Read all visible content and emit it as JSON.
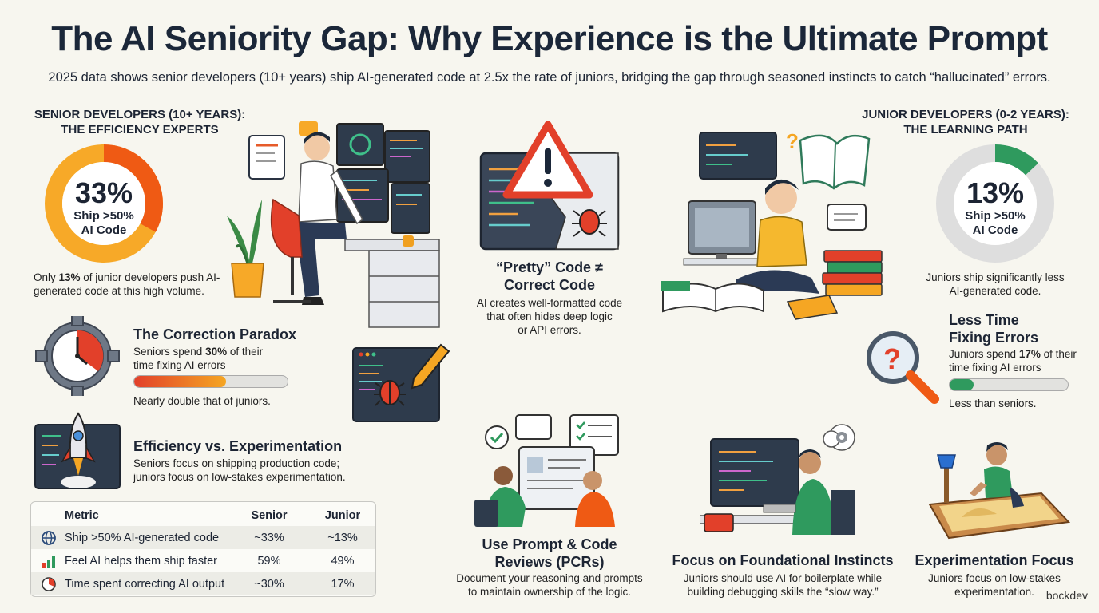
{
  "title": "The AI Seniority Gap: Why Experience is the Ultimate Prompt",
  "subtitle": "2025 data shows senior developers (10+ years) ship AI-generated code at 2.5x the rate of juniors, bridging the gap through seasoned instincts to catch “hallucinated” errors.",
  "colors": {
    "accent_orange": "#f07a1a",
    "accent_red": "#e2402a",
    "accent_green": "#2f9a5e",
    "dark_navy": "#1b2739"
  },
  "senior": {
    "heading_line1": "SENIOR DEVELOPERS (10+ YEARS):",
    "heading_line2": "THE EFFICIENCY EXPERTS",
    "donut_value": "33%",
    "donut_fraction": 0.33,
    "donut_line1": "Ship >50%",
    "donut_line2": "AI Code",
    "note_pre": "Only ",
    "note_bold": "13%",
    "note_post": " of junior developers push AI-generated code at this high volume.",
    "correction_title": "The Correction Paradox",
    "correction_pre": "Seniors spend ",
    "correction_bold": "30%",
    "correction_post": " of their time fixing AI errors",
    "correction_bar_fraction": 0.6,
    "correction_note": "Nearly double that of juniors.",
    "efficiency_title": "Efficiency vs. Experimentation",
    "efficiency_line1": "Seniors focus on shipping production code;",
    "efficiency_line2": "juniors focus on low-stakes experimentation."
  },
  "table": {
    "headers": [
      "Metric",
      "Senior",
      "Junior"
    ],
    "rows": [
      {
        "icon": "globe-icon",
        "metric": "Ship >50% AI-generated code",
        "senior": "~33%",
        "junior": "~13%"
      },
      {
        "icon": "bar-chart-icon",
        "metric": "Feel AI helps them ship faster",
        "senior": "59%",
        "junior": "49%"
      },
      {
        "icon": "pie-clock-icon",
        "metric": "Time spent correcting AI output",
        "senior": "~30%",
        "junior": "17%"
      }
    ]
  },
  "middle": {
    "pretty_title_line1": "“Pretty” Code ≠",
    "pretty_title_line2": "Correct Code",
    "pretty_line1": "AI creates well-formatted code",
    "pretty_line2": "that often hides deep logic",
    "pretty_line3": "or API errors.",
    "pcr_title_line1": "Use Prompt & Code",
    "pcr_title_line2": "Reviews (PCRs)",
    "pcr_line1": "Document your reasoning and prompts",
    "pcr_line2": "to maintain ownership of the logic."
  },
  "junior": {
    "heading_line1": "JUNIOR DEVELOPERS (0-2 YEARS):",
    "heading_line2": "THE LEARNING PATH",
    "donut_value": "13%",
    "donut_fraction": 0.13,
    "donut_line1": "Ship >50%",
    "donut_line2": "AI Code",
    "note_line1": "Juniors ship significantly less",
    "note_line2": "AI-generated code.",
    "less_title_line1": "Less Time",
    "less_title_line2": "Fixing Errors",
    "less_pre": "Juniors spend ",
    "less_bold": "17%",
    "less_post": " of their time fixing AI errors",
    "less_bar_fraction": 0.2,
    "less_note": "Less than seniors.",
    "found_title": "Focus on Foundational Instincts",
    "found_line1": "Juniors should use AI for boilerplate while",
    "found_line2": "building debugging skills the “slow way.”",
    "exp_title": "Experimentation Focus",
    "exp_line1": "Juniors focus on low-stakes",
    "exp_line2": "experimentation."
  },
  "watermark": "bockdev"
}
